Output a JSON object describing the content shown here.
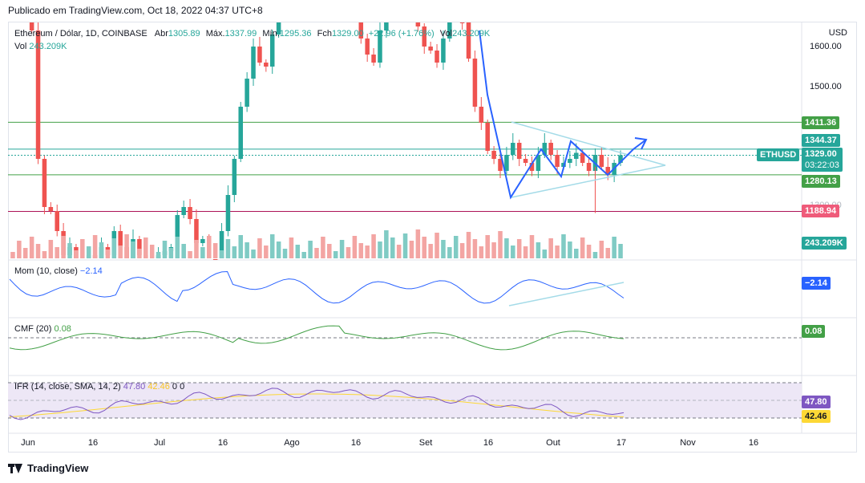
{
  "header": {
    "published": "Publicado em TradingView.com, Oct 18, 2022 04:37 UTC+8"
  },
  "legend": {
    "symbol": "Ethereum / Dólar, 1D, COINBASE",
    "open_label": "Abr",
    "open": "1305.89",
    "high_label": "Máx.",
    "high": "1337.99",
    "low_label": "Mín.",
    "low": "1295.36",
    "close_label": "Fch",
    "close": "1329.00",
    "change": "+22.96 (+1.76%)",
    "vol_label": "Vol",
    "vol": "243.209K",
    "vol_line_label": "Vol",
    "vol_line_value": "243.209K"
  },
  "price_axis": {
    "currency": "USD",
    "ticks": [
      "1600.00",
      "1500.00",
      "1300.00"
    ]
  },
  "price_badges": {
    "level_1411": "1411.36",
    "level_1344": "1344.37",
    "symbol_tag": "ETHUSD",
    "last_price": "1329.00",
    "countdown": "03:22:03",
    "level_1280": "1280.13",
    "level_1188": "1188.94",
    "volume": "243.209K"
  },
  "indicators": {
    "mom": {
      "label": "Mom (10, close)",
      "value": "−2.14",
      "badge": "−2.14"
    },
    "cmf": {
      "label": "CMF (20)",
      "value": "0.08",
      "badge": "0.08"
    },
    "rsi": {
      "label": "IFR (14, close, SMA, 14, 2)",
      "value": "47.80",
      "sma": "42.46",
      "extra": "0  0",
      "badge_rsi": "47.80",
      "badge_sma": "42.46"
    }
  },
  "time_axis": {
    "labels": [
      "Jun",
      "16",
      "Jul",
      "16",
      "Ago",
      "16",
      "Set",
      "16",
      "Out",
      "17",
      "Nov",
      "16"
    ]
  },
  "footer": {
    "brand": "TradingView"
  },
  "colors": {
    "up": "#26a69a",
    "down": "#ef5350",
    "vol_up": "#80cbc4",
    "vol_down": "#f3a5a3",
    "pattern": "#2962ff",
    "triangle": "#a4dbe8",
    "support_green": "#43a047",
    "level_pink": "#ad1457",
    "mom_line": "#2962ff",
    "cmf_line": "#43a047",
    "rsi_line": "#7e57c2",
    "rsi_sma": "#fdd835"
  },
  "chart_data": {
    "type": "candlestick",
    "title": "Ethereum / Dólar, 1D, COINBASE",
    "approximate": true,
    "x_axis_months": [
      "Jun",
      "Jul",
      "Ago",
      "Set",
      "Out",
      "Nov"
    ],
    "ylim": [
      1100,
      1700
    ],
    "horizontal_levels": [
      1411.36,
      1344.37,
      1280.13,
      1188.94
    ],
    "last": {
      "open": 1305.89,
      "high": 1337.99,
      "low": 1295.36,
      "close": 1329.0,
      "volume": "243.209K"
    },
    "closes_approx": [
      1760,
      1720,
      1700,
      1640,
      1320,
      1200,
      1190,
      1140,
      1080,
      1100,
      1060,
      1000,
      1080,
      1050,
      1100,
      1080,
      1140,
      1100,
      1060,
      1120,
      1080,
      1050,
      1030,
      1080,
      1090,
      1100,
      1180,
      1200,
      1170,
      1110,
      1120,
      1070,
      1060,
      1140,
      1230,
      1320,
      1450,
      1520,
      1600,
      1560,
      1550,
      1630,
      1700,
      1720,
      1690,
      1710,
      1740,
      1850,
      1820,
      1720,
      1680,
      1700,
      1880,
      1720,
      1700,
      1620,
      1580,
      1560,
      1640,
      1720,
      1730,
      1710,
      1760,
      1700,
      1650,
      1600,
      1590,
      1560,
      1620,
      1680,
      1720,
      1660,
      1570,
      1450,
      1410,
      1340,
      1320,
      1290,
      1330,
      1360,
      1320,
      1310,
      1290,
      1330,
      1360,
      1330,
      1300,
      1310,
      1320,
      1335,
      1310,
      1290,
      1330,
      1300,
      1280,
      1310,
      1329
    ],
    "pattern_points_approx": [
      [
        1600,
        "2022-09-13"
      ],
      [
        1246,
        "2022-09-21"
      ],
      [
        1350,
        "2022-09-27"
      ],
      [
        1290,
        "2022-09-30"
      ],
      [
        1350,
        "2022-10-05"
      ],
      [
        1290,
        "2022-10-13"
      ],
      [
        1330,
        "2022-10-16"
      ],
      [
        1370,
        "2022-10-19"
      ]
    ],
    "triangle_approx": {
      "upper_start": 1400,
      "lower_start": 1250,
      "apex": 1315
    }
  }
}
